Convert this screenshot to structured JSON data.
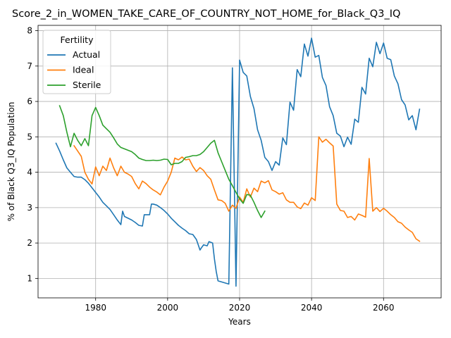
{
  "chart_data": {
    "type": "line",
    "title": "Score_2_in_WOMEN_TAKE_CARE_OF_COUNTRY_NOT_HOME_for_Black_Q3_IQ",
    "xlabel": "Years",
    "ylabel": "% of Black Q3_IQ Population",
    "xlim": [
      1964,
      2076
    ],
    "ylim": [
      0.45,
      8.15
    ],
    "xticks": [
      1980,
      2000,
      2020,
      2040,
      2060
    ],
    "yticks": [
      1,
      2,
      3,
      4,
      5,
      6,
      7,
      8
    ],
    "grid": true,
    "legend": {
      "title": "Fertility",
      "placement": "upper-left"
    },
    "series": [
      {
        "name": "Actual",
        "color": "#1f77b4",
        "points": [
          [
            1969,
            4.82
          ],
          [
            1970,
            4.6
          ],
          [
            1971,
            4.35
          ],
          [
            1972,
            4.12
          ],
          [
            1973,
            4.0
          ],
          [
            1974,
            3.88
          ],
          [
            1975,
            3.86
          ],
          [
            1976,
            3.86
          ],
          [
            1977,
            3.79
          ],
          [
            1978,
            3.69
          ],
          [
            1979,
            3.56
          ],
          [
            1980,
            3.43
          ],
          [
            1981,
            3.3
          ],
          [
            1982,
            3.15
          ],
          [
            1983,
            3.05
          ],
          [
            1984,
            2.95
          ],
          [
            1985,
            2.8
          ],
          [
            1986,
            2.65
          ],
          [
            1987,
            2.52
          ],
          [
            1987.5,
            2.9
          ],
          [
            1988,
            2.75
          ],
          [
            1989,
            2.7
          ],
          [
            1990,
            2.65
          ],
          [
            1991,
            2.58
          ],
          [
            1992,
            2.5
          ],
          [
            1993,
            2.48
          ],
          [
            1993.5,
            2.8
          ],
          [
            1994,
            2.8
          ],
          [
            1995,
            2.8
          ],
          [
            1995.5,
            3.1
          ],
          [
            1996,
            3.1
          ],
          [
            1997,
            3.07
          ],
          [
            1998,
            3.0
          ],
          [
            1999,
            2.92
          ],
          [
            2000,
            2.82
          ],
          [
            2001,
            2.7
          ],
          [
            2002,
            2.6
          ],
          [
            2003,
            2.5
          ],
          [
            2004,
            2.42
          ],
          [
            2005,
            2.35
          ],
          [
            2006,
            2.26
          ],
          [
            2007,
            2.24
          ],
          [
            2008,
            2.1
          ],
          [
            2008.5,
            1.95
          ],
          [
            2009,
            1.8
          ],
          [
            2009.5,
            1.88
          ],
          [
            2010,
            1.95
          ],
          [
            2011,
            1.92
          ],
          [
            2011.5,
            2.04
          ],
          [
            2012.5,
            2.0
          ],
          [
            2013,
            1.55
          ],
          [
            2013.5,
            1.2
          ],
          [
            2014,
            0.93
          ],
          [
            2015,
            0.9
          ],
          [
            2016,
            0.87
          ],
          [
            2017,
            0.84
          ],
          [
            2018,
            6.95
          ],
          [
            2019,
            0.78
          ],
          [
            2020,
            7.17
          ],
          [
            2021,
            6.82
          ],
          [
            2022,
            6.72
          ],
          [
            2023,
            6.14
          ],
          [
            2024,
            5.8
          ],
          [
            2025,
            5.2
          ],
          [
            2026,
            4.9
          ],
          [
            2027,
            4.42
          ],
          [
            2028,
            4.3
          ],
          [
            2029,
            4.05
          ],
          [
            2030,
            4.3
          ],
          [
            2031,
            4.2
          ],
          [
            2032,
            4.97
          ],
          [
            2033,
            4.78
          ],
          [
            2034,
            5.98
          ],
          [
            2035,
            5.75
          ],
          [
            2036,
            6.9
          ],
          [
            2037,
            6.7
          ],
          [
            2038,
            7.62
          ],
          [
            2039,
            7.28
          ],
          [
            2040,
            7.79
          ],
          [
            2041,
            7.25
          ],
          [
            2042,
            7.3
          ],
          [
            2043,
            6.68
          ],
          [
            2044,
            6.45
          ],
          [
            2045,
            5.85
          ],
          [
            2046,
            5.6
          ],
          [
            2047,
            5.1
          ],
          [
            2048,
            5.02
          ],
          [
            2049,
            4.72
          ],
          [
            2050,
            4.99
          ],
          [
            2051,
            4.79
          ],
          [
            2052,
            5.5
          ],
          [
            2053,
            5.41
          ],
          [
            2054,
            6.4
          ],
          [
            2055,
            6.21
          ],
          [
            2056,
            7.22
          ],
          [
            2057,
            6.98
          ],
          [
            2058,
            7.67
          ],
          [
            2059,
            7.35
          ],
          [
            2060,
            7.65
          ],
          [
            2061,
            7.22
          ],
          [
            2062,
            7.18
          ],
          [
            2063,
            6.72
          ],
          [
            2064,
            6.5
          ],
          [
            2065,
            6.05
          ],
          [
            2066,
            5.9
          ],
          [
            2067,
            5.48
          ],
          [
            2068,
            5.6
          ],
          [
            2069,
            5.2
          ],
          [
            2070,
            5.78
          ]
        ]
      },
      {
        "name": "Ideal",
        "color": "#ff7f0e",
        "points": [
          [
            1974,
            4.75
          ],
          [
            1975,
            4.6
          ],
          [
            1976,
            4.45
          ],
          [
            1977,
            4.0
          ],
          [
            1978,
            3.8
          ],
          [
            1979,
            3.67
          ],
          [
            1980,
            4.15
          ],
          [
            1981,
            3.9
          ],
          [
            1982,
            4.17
          ],
          [
            1983,
            4.05
          ],
          [
            1984,
            4.4
          ],
          [
            1985,
            4.12
          ],
          [
            1986,
            3.9
          ],
          [
            1987,
            4.17
          ],
          [
            1988,
            4.0
          ],
          [
            1989,
            3.95
          ],
          [
            1990,
            3.88
          ],
          [
            1991,
            3.68
          ],
          [
            1992,
            3.53
          ],
          [
            1993,
            3.75
          ],
          [
            1994,
            3.68
          ],
          [
            1995,
            3.58
          ],
          [
            1996,
            3.5
          ],
          [
            1997,
            3.44
          ],
          [
            1998,
            3.36
          ],
          [
            1999,
            3.58
          ],
          [
            2000,
            3.75
          ],
          [
            2001,
            4.0
          ],
          [
            2002,
            4.4
          ],
          [
            2003,
            4.35
          ],
          [
            2004,
            4.43
          ],
          [
            2005,
            4.35
          ],
          [
            2006,
            4.37
          ],
          [
            2007,
            4.17
          ],
          [
            2008,
            4.02
          ],
          [
            2009,
            4.13
          ],
          [
            2010,
            4.05
          ],
          [
            2011,
            3.9
          ],
          [
            2012,
            3.8
          ],
          [
            2013,
            3.5
          ],
          [
            2014,
            3.22
          ],
          [
            2015,
            3.2
          ],
          [
            2016,
            3.12
          ],
          [
            2017,
            2.9
          ],
          [
            2018,
            3.07
          ],
          [
            2019,
            2.98
          ],
          [
            2020,
            3.3
          ],
          [
            2021,
            3.15
          ],
          [
            2022,
            3.53
          ],
          [
            2023,
            3.3
          ],
          [
            2024,
            3.55
          ],
          [
            2025,
            3.45
          ],
          [
            2026,
            3.75
          ],
          [
            2027,
            3.7
          ],
          [
            2028,
            3.76
          ],
          [
            2029,
            3.5
          ],
          [
            2030,
            3.45
          ],
          [
            2031,
            3.38
          ],
          [
            2032,
            3.42
          ],
          [
            2033,
            3.22
          ],
          [
            2034,
            3.15
          ],
          [
            2035,
            3.15
          ],
          [
            2036,
            3.02
          ],
          [
            2037,
            2.97
          ],
          [
            2038,
            3.13
          ],
          [
            2039,
            3.07
          ],
          [
            2040,
            3.28
          ],
          [
            2041,
            3.2
          ],
          [
            2042,
            5.0
          ],
          [
            2043,
            4.85
          ],
          [
            2044,
            4.93
          ],
          [
            2045,
            4.83
          ],
          [
            2046,
            4.74
          ],
          [
            2047,
            3.1
          ],
          [
            2048,
            2.92
          ],
          [
            2049,
            2.9
          ],
          [
            2050,
            2.72
          ],
          [
            2051,
            2.75
          ],
          [
            2052,
            2.65
          ],
          [
            2053,
            2.82
          ],
          [
            2054,
            2.78
          ],
          [
            2055,
            2.73
          ],
          [
            2056,
            4.39
          ],
          [
            2057,
            2.9
          ],
          [
            2058,
            3.0
          ],
          [
            2059,
            2.89
          ],
          [
            2060,
            2.98
          ],
          [
            2061,
            2.9
          ],
          [
            2062,
            2.8
          ],
          [
            2063,
            2.72
          ],
          [
            2064,
            2.6
          ],
          [
            2065,
            2.56
          ],
          [
            2066,
            2.45
          ],
          [
            2067,
            2.37
          ],
          [
            2068,
            2.3
          ],
          [
            2069,
            2.12
          ],
          [
            2070,
            2.05
          ]
        ]
      },
      {
        "name": "Sterile",
        "color": "#2ca02c",
        "points": [
          [
            1970,
            5.88
          ],
          [
            1971,
            5.6
          ],
          [
            1972,
            5.13
          ],
          [
            1973,
            4.72
          ],
          [
            1974,
            5.1
          ],
          [
            1975,
            4.9
          ],
          [
            1976,
            4.75
          ],
          [
            1977,
            4.95
          ],
          [
            1978,
            4.75
          ],
          [
            1979,
            5.6
          ],
          [
            1980,
            5.83
          ],
          [
            1981,
            5.6
          ],
          [
            1982,
            5.33
          ],
          [
            1983,
            5.23
          ],
          [
            1984,
            5.13
          ],
          [
            1985,
            4.97
          ],
          [
            1986,
            4.8
          ],
          [
            1987,
            4.7
          ],
          [
            1988,
            4.66
          ],
          [
            1989,
            4.62
          ],
          [
            1990,
            4.58
          ],
          [
            1991,
            4.5
          ],
          [
            1992,
            4.4
          ],
          [
            1993,
            4.36
          ],
          [
            1994,
            4.33
          ],
          [
            1995,
            4.33
          ],
          [
            1996,
            4.34
          ],
          [
            1997,
            4.33
          ],
          [
            1998,
            4.34
          ],
          [
            1999,
            4.37
          ],
          [
            2000,
            4.36
          ],
          [
            2001,
            4.21
          ],
          [
            2002,
            4.25
          ],
          [
            2003,
            4.25
          ],
          [
            2004,
            4.3
          ],
          [
            2005,
            4.42
          ],
          [
            2006,
            4.44
          ],
          [
            2007,
            4.47
          ],
          [
            2008,
            4.47
          ],
          [
            2009,
            4.5
          ],
          [
            2010,
            4.58
          ],
          [
            2011,
            4.7
          ],
          [
            2012,
            4.82
          ],
          [
            2013,
            4.9
          ],
          [
            2014,
            4.55
          ],
          [
            2015,
            4.3
          ],
          [
            2016,
            4.05
          ],
          [
            2017,
            3.8
          ],
          [
            2018,
            3.62
          ],
          [
            2019,
            3.43
          ],
          [
            2020,
            3.25
          ],
          [
            2021,
            3.12
          ],
          [
            2022,
            3.37
          ],
          [
            2023,
            3.35
          ],
          [
            2024,
            3.15
          ],
          [
            2025,
            2.92
          ],
          [
            2026,
            2.72
          ],
          [
            2027,
            2.9
          ]
        ]
      }
    ]
  }
}
